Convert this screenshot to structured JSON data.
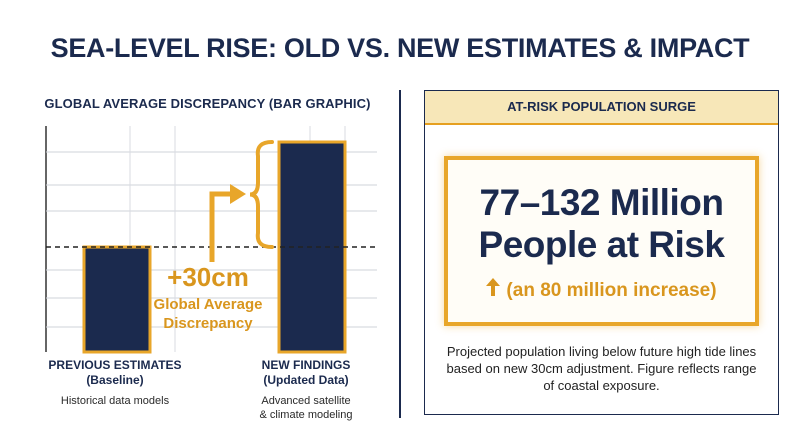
{
  "page": {
    "title": "SEA-LEVEL RISE: OLD VS. NEW ESTIMATES & IMPACT"
  },
  "chart_data": {
    "type": "bar",
    "title": "GLOBAL AVERAGE DISCREPANCY (BAR GRAPHIC)",
    "categories": [
      "PREVIOUS ESTIMATES",
      "NEW FINDINGS"
    ],
    "category_sublabels": [
      "(Baseline)",
      "(Updated Data)"
    ],
    "category_descriptions": [
      "Historical data models",
      "Advanced satellite\n& climate modeling"
    ],
    "values": [
      1.0,
      2.0
    ],
    "value_note": "Relative heights only; no numeric axis printed",
    "baseline_dashed_line": true,
    "grid": true,
    "annotation": {
      "value": "+30cm",
      "label": "Global Average Discrepancy"
    },
    "colors": {
      "bar_fill": "#1b2a4e",
      "bar_outline": "#e8a62a",
      "accent": "#e8a62a",
      "annotation_text": "#d9961e"
    }
  },
  "panel": {
    "header": "AT-RISK POPULATION SURGE",
    "big_line1": "77–132 Million",
    "big_line2": "People at Risk",
    "increase": "(an 80 million increase)",
    "increase_icon": "arrow-up-icon",
    "description": "Projected population living below future high tide lines based on new 30cm adjustment. Figure reflects range of coastal exposure."
  }
}
